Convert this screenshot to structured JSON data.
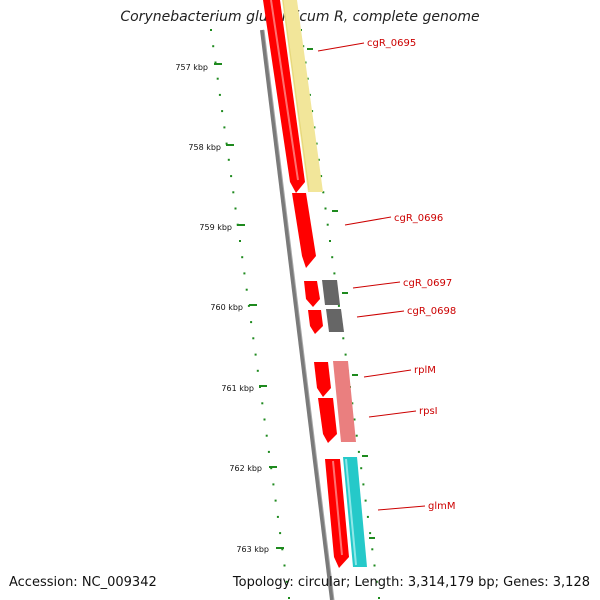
{
  "title": "Corynebacterium glutamicum R, complete genome",
  "accession": "Accession: NC_009342",
  "footer": "Topology: circular; Length: 3,314,179 bp; Genes: 3,128",
  "colors": {
    "backbone": "#7a7a7a",
    "tick": "#1e8a1e",
    "gene_forward": "#ff0000",
    "label": "#cc0000",
    "cds_hypothetical": "#f2e69a",
    "cds_grey": "#666666",
    "cds_pink": "#ea7f7f",
    "cds_cyan": "#25c9c9"
  },
  "ticks": [
    "757 kbp",
    "758 kbp",
    "759 kbp",
    "760 kbp",
    "761 kbp",
    "762 kbp",
    "763 kbp"
  ],
  "genes": [
    {
      "name": "cgR_0695"
    },
    {
      "name": "cgR_0696"
    },
    {
      "name": "cgR_0697"
    },
    {
      "name": "cgR_0698"
    },
    {
      "name": "rplM"
    },
    {
      "name": "rpsI"
    },
    {
      "name": "glmM"
    }
  ]
}
